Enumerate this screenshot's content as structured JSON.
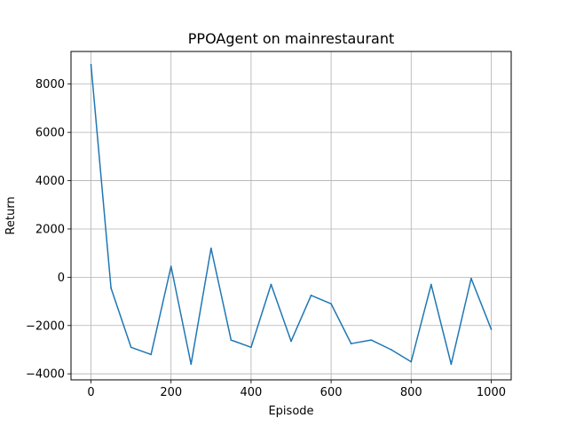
{
  "chart_data": {
    "type": "line",
    "title": "PPOAgent on mainrestaurant",
    "xlabel": "Episode",
    "ylabel": "Return",
    "xlim": [
      -50,
      1050
    ],
    "ylim": [
      -4250,
      9350
    ],
    "grid": true,
    "series": [
      {
        "name": "Return",
        "color": "#1f77b4",
        "x": [
          0,
          50,
          100,
          150,
          200,
          250,
          300,
          350,
          400,
          450,
          500,
          550,
          600,
          650,
          700,
          750,
          800,
          850,
          900,
          950,
          1000
        ],
        "y": [
          8800,
          -450,
          -2900,
          -3200,
          450,
          -3600,
          1200,
          -2600,
          -2900,
          -300,
          -2650,
          -750,
          -1100,
          -2750,
          -2600,
          -3000,
          -3500,
          -300,
          -3600,
          -50,
          -2150
        ]
      }
    ],
    "xticks": [
      {
        "value": 0,
        "label": "0"
      },
      {
        "value": 200,
        "label": "200"
      },
      {
        "value": 400,
        "label": "400"
      },
      {
        "value": 600,
        "label": "600"
      },
      {
        "value": 800,
        "label": "800"
      },
      {
        "value": 1000,
        "label": "1000"
      }
    ],
    "yticks": [
      {
        "value": -4000,
        "label": "−4000"
      },
      {
        "value": -2000,
        "label": "−2000"
      },
      {
        "value": 0,
        "label": "0"
      },
      {
        "value": 2000,
        "label": "2000"
      },
      {
        "value": 4000,
        "label": "4000"
      },
      {
        "value": 6000,
        "label": "6000"
      },
      {
        "value": 8000,
        "label": "8000"
      }
    ]
  }
}
